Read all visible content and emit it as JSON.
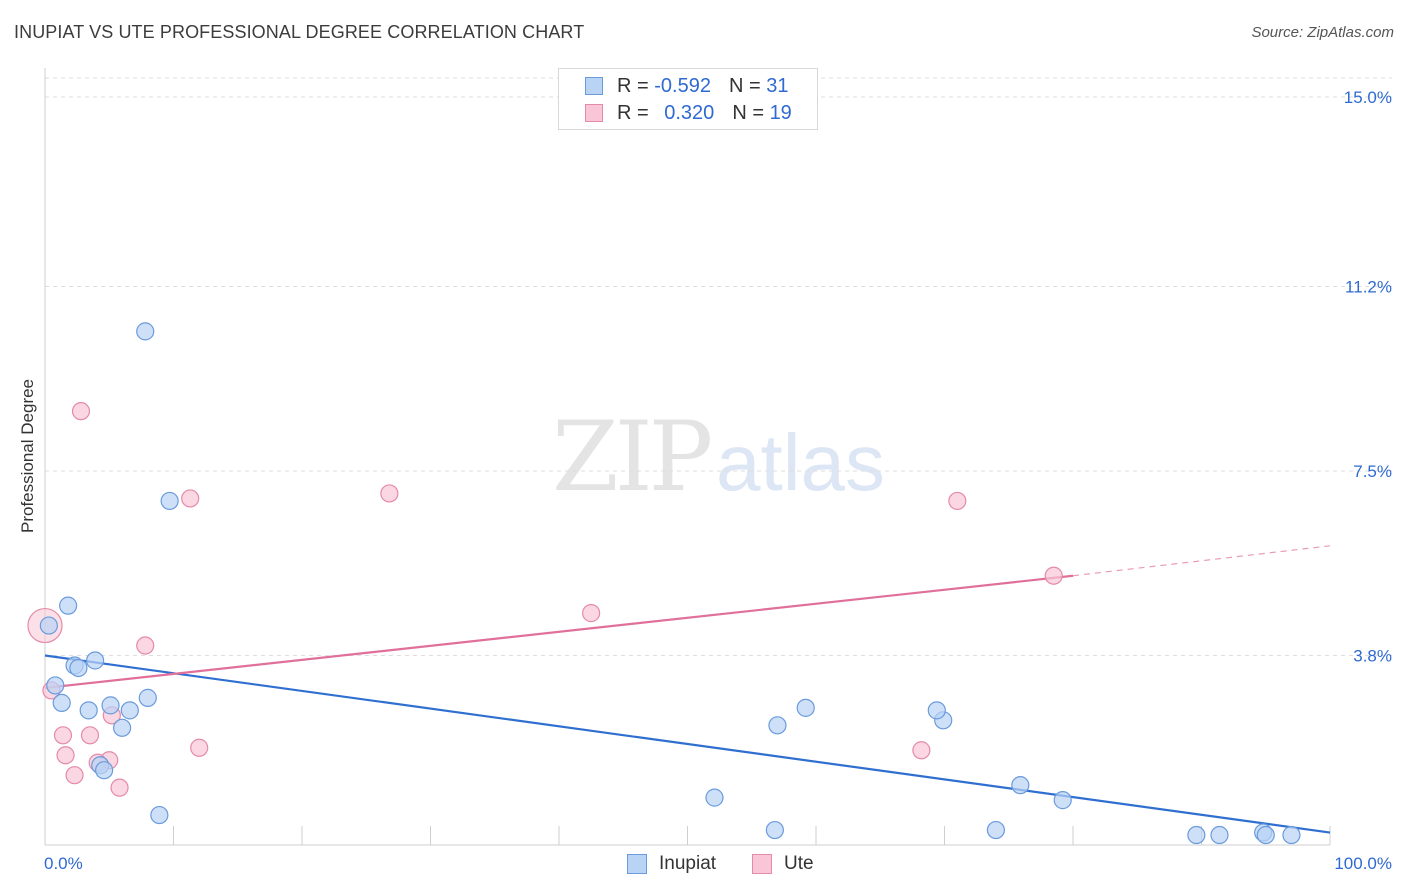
{
  "header": {
    "title": "INUPIAT VS UTE PROFESSIONAL DEGREE CORRELATION CHART",
    "source": "Source: ZipAtlas.com"
  },
  "watermark": {
    "zip": "ZIP",
    "atlas": "atlas"
  },
  "legend": [
    {
      "r_label": "R = ",
      "r_value": "-0.592",
      "n_label": "N = ",
      "n_value": "31"
    },
    {
      "r_label": "R = ",
      "r_value": "0.320",
      "n_label": "N = ",
      "n_value": "19"
    }
  ],
  "colors": {
    "inupiat_fill": "#b9d3f5",
    "inupiat_stroke": "#6a9bdc",
    "inupiat_line": "#2f6fd0",
    "ute_fill": "#f8c6d6",
    "ute_stroke": "#e58aa9",
    "ute_line": "#e0709a",
    "tick_label": "#2f6ad0",
    "grid": "#dedede"
  },
  "chart_data": {
    "type": "scatter",
    "title": "INUPIAT VS UTE PROFESSIONAL DEGREE CORRELATION CHART",
    "xlabel": "",
    "ylabel": "Professional Degree",
    "xlim": [
      0,
      100
    ],
    "ylim": [
      0,
      15
    ],
    "x_tick_labels": [
      "0.0%",
      "100.0%"
    ],
    "y_ticks": [
      3.8,
      7.5,
      11.2,
      15.0
    ],
    "y_tick_labels": [
      "3.8%",
      "7.5%",
      "11.2%",
      "15.0%"
    ],
    "grid": true,
    "legend_position": "top-center",
    "series": [
      {
        "name": "Inupiat",
        "points": [
          [
            7.8,
            10.3
          ],
          [
            9.7,
            6.9
          ],
          [
            1.8,
            4.8
          ],
          [
            0.3,
            4.4
          ],
          [
            3.9,
            3.7
          ],
          [
            2.3,
            3.6
          ],
          [
            2.6,
            3.55
          ],
          [
            0.8,
            3.2
          ],
          [
            8.0,
            2.95
          ],
          [
            1.3,
            2.85
          ],
          [
            5.1,
            2.8
          ],
          [
            3.4,
            2.7
          ],
          [
            6.6,
            2.7
          ],
          [
            6.0,
            2.35
          ],
          [
            4.3,
            1.6
          ],
          [
            4.6,
            1.5
          ],
          [
            8.9,
            0.6
          ],
          [
            59.2,
            2.75
          ],
          [
            57.0,
            2.4
          ],
          [
            69.9,
            2.5
          ],
          [
            69.4,
            2.7
          ],
          [
            52.1,
            0.95
          ],
          [
            56.8,
            0.3
          ],
          [
            75.9,
            1.2
          ],
          [
            79.2,
            0.9
          ],
          [
            74.0,
            0.3
          ],
          [
            89.6,
            0.2
          ],
          [
            91.4,
            0.2
          ],
          [
            94.8,
            0.25
          ],
          [
            95.0,
            0.2
          ],
          [
            97.0,
            0.2
          ]
        ],
        "trend": {
          "x": [
            0,
            100
          ],
          "y": [
            3.8,
            0.25
          ]
        }
      },
      {
        "name": "Ute",
        "points": [
          [
            2.8,
            8.7
          ],
          [
            11.3,
            6.95
          ],
          [
            26.8,
            7.05
          ],
          [
            71.0,
            6.9
          ],
          [
            78.5,
            5.4
          ],
          [
            42.5,
            4.65
          ],
          [
            7.8,
            4.0
          ],
          [
            0.5,
            3.1
          ],
          [
            5.2,
            2.6
          ],
          [
            1.4,
            2.2
          ],
          [
            3.5,
            2.2
          ],
          [
            12.0,
            1.95
          ],
          [
            1.6,
            1.8
          ],
          [
            5.0,
            1.7
          ],
          [
            4.1,
            1.65
          ],
          [
            2.3,
            1.4
          ],
          [
            5.8,
            1.15
          ],
          [
            68.2,
            1.9
          ],
          [
            0.0,
            4.4
          ]
        ],
        "trend": {
          "x": [
            0,
            80
          ],
          "y": [
            3.15,
            5.4
          ]
        },
        "trend_extension": {
          "x": [
            80,
            100
          ],
          "y": [
            5.4,
            6.0
          ]
        }
      }
    ]
  },
  "bottom_legend": [
    {
      "label": "Inupiat"
    },
    {
      "label": "Ute"
    }
  ]
}
